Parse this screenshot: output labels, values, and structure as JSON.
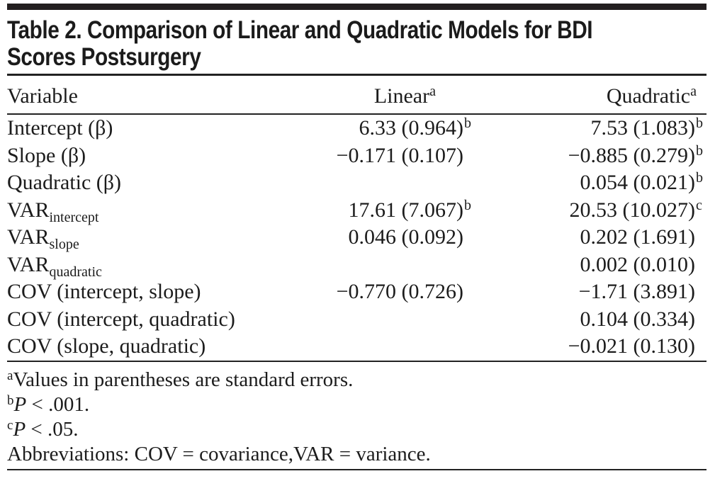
{
  "title_lines": [
    "Table 2. Comparison of Linear and Quadratic Models for BDI",
    "Scores Postsurgery"
  ],
  "table": {
    "header": {
      "variable": "Variable",
      "linear": "Linear",
      "linear_sup": "a",
      "quadratic": "Quadratic",
      "quadratic_sup": "a"
    },
    "rows": [
      {
        "label": "Intercept (β)",
        "label_sub": "",
        "linear": "6.33 (0.964)",
        "linear_sup": "b",
        "quadratic": "7.53 (1.083)",
        "quadratic_sup": "b"
      },
      {
        "label": "Slope (β)",
        "label_sub": "",
        "linear": "−0.171 (0.107)",
        "linear_sup": "",
        "quadratic": "−0.885 (0.279)",
        "quadratic_sup": "b"
      },
      {
        "label": "Quadratic (β)",
        "label_sub": "",
        "linear": "",
        "linear_sup": "",
        "quadratic": "0.054 (0.021)",
        "quadratic_sup": "b"
      },
      {
        "label": "VAR",
        "label_sub": "intercept",
        "linear": "17.61 (7.067)",
        "linear_sup": "b",
        "quadratic": "20.53 (10.027)",
        "quadratic_sup": "c"
      },
      {
        "label": "VAR",
        "label_sub": "slope",
        "linear": "0.046 (0.092)",
        "linear_sup": "",
        "quadratic": "0.202 (1.691)",
        "quadratic_sup": ""
      },
      {
        "label": "VAR",
        "label_sub": "quadratic",
        "linear": "",
        "linear_sup": "",
        "quadratic": "0.002 (0.010)",
        "quadratic_sup": ""
      },
      {
        "label": "COV (intercept, slope)",
        "label_sub": "",
        "linear": "−0.770 (0.726)",
        "linear_sup": "",
        "quadratic": "−1.71 (3.891)",
        "quadratic_sup": ""
      },
      {
        "label": "COV (intercept, quadratic)",
        "label_sub": "",
        "linear": "",
        "linear_sup": "",
        "quadratic": "0.104 (0.334)",
        "quadratic_sup": ""
      },
      {
        "label": "COV (slope, quadratic)",
        "label_sub": "",
        "linear": "",
        "linear_sup": "",
        "quadratic": "−0.021 (0.130)",
        "quadratic_sup": ""
      }
    ]
  },
  "footnotes": [
    {
      "sup": "a",
      "italic": "",
      "text": "Values in parentheses are standard errors."
    },
    {
      "sup": "b",
      "italic": "P",
      "text": " < .001."
    },
    {
      "sup": "c",
      "italic": "P",
      "text": " < .05."
    },
    {
      "sup": "",
      "italic": "",
      "text": "Abbreviations: COV = covariance,VAR = variance."
    }
  ],
  "colors": {
    "text": "#1c1c1c",
    "top_bar": "#231f20",
    "rule": "#222222",
    "background": "#ffffff"
  }
}
